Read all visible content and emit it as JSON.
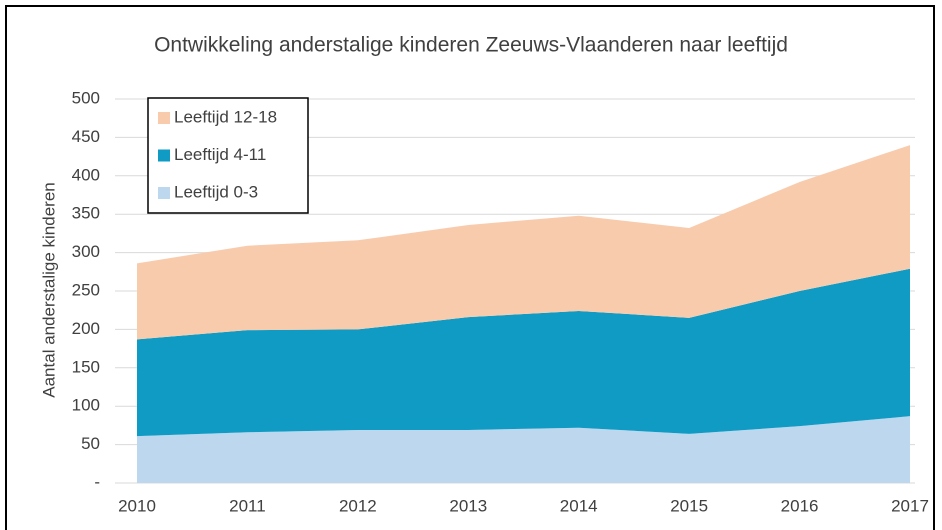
{
  "chart_data": {
    "type": "stacked_area",
    "title": "Ontwikkeling anderstalige kinderen Zeeuws-Vlaanderen naar leeftijd",
    "y_label": "Aantal anderstalige kinderen",
    "categories": [
      "2010",
      "2011",
      "2012",
      "2013",
      "2014",
      "2015",
      "2016",
      "2017"
    ],
    "series": [
      {
        "name": "Leeftijd 0-3",
        "color": "#bdd7ee",
        "values": [
          61,
          66,
          69,
          69,
          72,
          64,
          74,
          87
        ]
      },
      {
        "name": "Leeftijd 4-11",
        "color": "#0f9bc4",
        "values": [
          126,
          133,
          131,
          147,
          152,
          151,
          176,
          192
        ]
      },
      {
        "name": "Leeftijd 12-18",
        "color": "#f8cbad",
        "values": [
          99,
          110,
          116,
          120,
          124,
          117,
          142,
          161
        ]
      }
    ],
    "ylim": [
      0,
      500
    ],
    "yticks": [
      {
        "value": 0,
        "label": "-"
      },
      50,
      100,
      150,
      200,
      250,
      300,
      350,
      400,
      450,
      500
    ],
    "grid": true,
    "legend": "top-left"
  }
}
